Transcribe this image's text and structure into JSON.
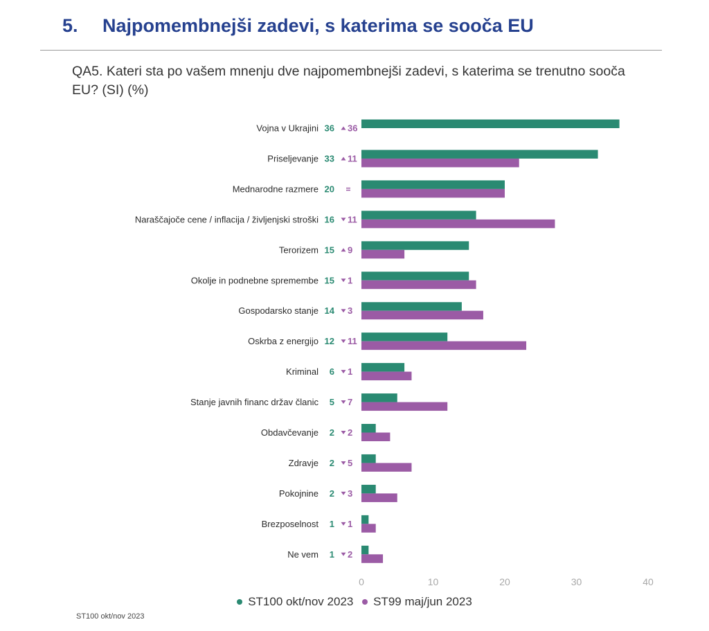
{
  "header": {
    "number": "5.",
    "title": "Najpomembnejši zadevi, s katerima se sooča EU",
    "question": "QA5. Kateri sta po vašem mnenju dve najpomembnejši zadevi, s katerima se trenutno sooča EU? (SI) (%)"
  },
  "source": "ST100 okt/nov 2023",
  "colors": {
    "current": "#2a8a72",
    "previous": "#9b5ba5"
  },
  "chart_data": {
    "type": "bar",
    "orientation": "horizontal",
    "xlim": [
      0,
      40
    ],
    "xticks": [
      0,
      10,
      20,
      30,
      40
    ],
    "grid": false,
    "legend_position": "bottom",
    "categories": [
      "Vojna v Ukrajini",
      "Priseljevanje",
      "Mednarodne razmere",
      "Naraščajoče cene / inflacija / življenjski stroški",
      "Terorizem",
      "Okolje in podnebne spremembe",
      "Gospodarsko stanje",
      "Oskrba z energijo",
      "Kriminal",
      "Stanje javnih financ držav članic",
      "Obdavčevanje",
      "Zdravje",
      "Pokojnine",
      "Brezposelnost",
      "Ne vem"
    ],
    "series": [
      {
        "name": "ST100 okt/nov 2023",
        "values": [
          36,
          33,
          20,
          16,
          15,
          15,
          14,
          12,
          6,
          5,
          2,
          2,
          2,
          1,
          1
        ]
      },
      {
        "name": "ST99 maj/jun 2023",
        "values": [
          0,
          22,
          20,
          27,
          6,
          16,
          17,
          23,
          7,
          12,
          4,
          7,
          5,
          2,
          3
        ]
      }
    ],
    "changes": [
      {
        "direction": "up",
        "text": "36"
      },
      {
        "direction": "up",
        "text": "11"
      },
      {
        "direction": "equal",
        "text": ""
      },
      {
        "direction": "down",
        "text": "11"
      },
      {
        "direction": "up",
        "text": "9"
      },
      {
        "direction": "down",
        "text": "1"
      },
      {
        "direction": "down",
        "text": "3"
      },
      {
        "direction": "down",
        "text": "11"
      },
      {
        "direction": "down",
        "text": "1"
      },
      {
        "direction": "down",
        "text": "7"
      },
      {
        "direction": "down",
        "text": "2"
      },
      {
        "direction": "down",
        "text": "5"
      },
      {
        "direction": "down",
        "text": "3"
      },
      {
        "direction": "down",
        "text": "1"
      },
      {
        "direction": "down",
        "text": "2"
      }
    ]
  }
}
